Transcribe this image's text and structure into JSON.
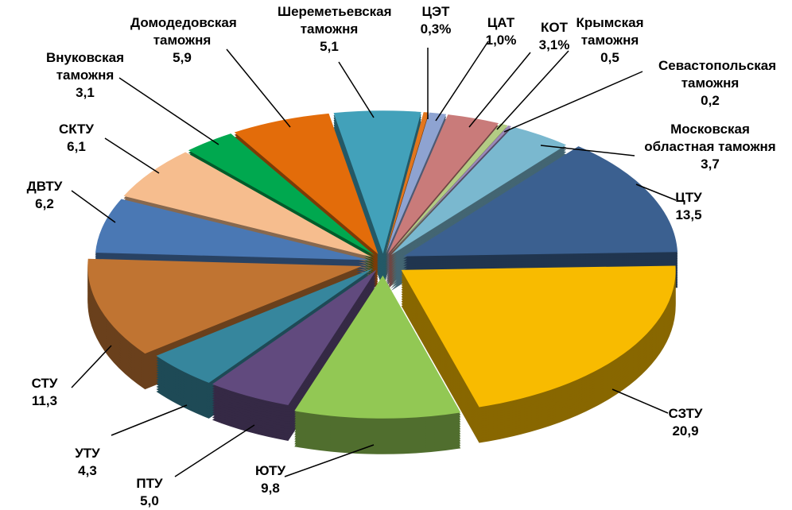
{
  "chart_data": {
    "type": "pie",
    "style": "3d-exploded",
    "legend": "none",
    "slices": [
      {
        "name": "ЦЭТ",
        "value": 0.3,
        "label": "0,3%",
        "color": "#e2761d"
      },
      {
        "name": "ЦАТ",
        "value": 1.0,
        "label": "1,0%",
        "color": "#8ea3d1"
      },
      {
        "name": "КОТ",
        "value": 3.1,
        "label": "3,1%",
        "color": "#c97b7a"
      },
      {
        "name": "Крымская таможня",
        "value": 0.5,
        "label": "0,5",
        "color": "#b3cc84"
      },
      {
        "name": "Севастопольская таможня",
        "value": 0.2,
        "label": "0,2",
        "color": "#9a86b8"
      },
      {
        "name": "Московская областная таможня",
        "value": 3.7,
        "label": "3,7",
        "color": "#7ab8cf"
      },
      {
        "name": "ЦТУ",
        "value": 13.5,
        "label": "13,5",
        "color": "#3b6090"
      },
      {
        "name": "СЗТУ",
        "value": 20.9,
        "label": "20,9",
        "color": "#f8bb00"
      },
      {
        "name": "ЮТУ",
        "value": 9.8,
        "label": "9,8",
        "color": "#92c854"
      },
      {
        "name": "ПТУ",
        "value": 5.0,
        "label": "5,0",
        "color": "#614a7e"
      },
      {
        "name": "УТУ",
        "value": 4.3,
        "label": "4,3",
        "color": "#36869d"
      },
      {
        "name": "СТУ",
        "value": 11.3,
        "label": "11,3",
        "color": "#c07432"
      },
      {
        "name": "ДВТУ",
        "value": 6.2,
        "label": "6,2",
        "color": "#4a78b4"
      },
      {
        "name": "СКТУ",
        "value": 6.1,
        "label": "6,1",
        "color": "#f6bd8e"
      },
      {
        "name": "Внуковская таможня",
        "value": 3.1,
        "label": "3,1",
        "color": "#00a84f"
      },
      {
        "name": "Домодедовская таможня",
        "value": 5.9,
        "label": "5,9",
        "color": "#e36c0a"
      },
      {
        "name": "Шереметьевская таможня",
        "value": 5.1,
        "label": "5,1",
        "color": "#42a1ba"
      }
    ]
  }
}
